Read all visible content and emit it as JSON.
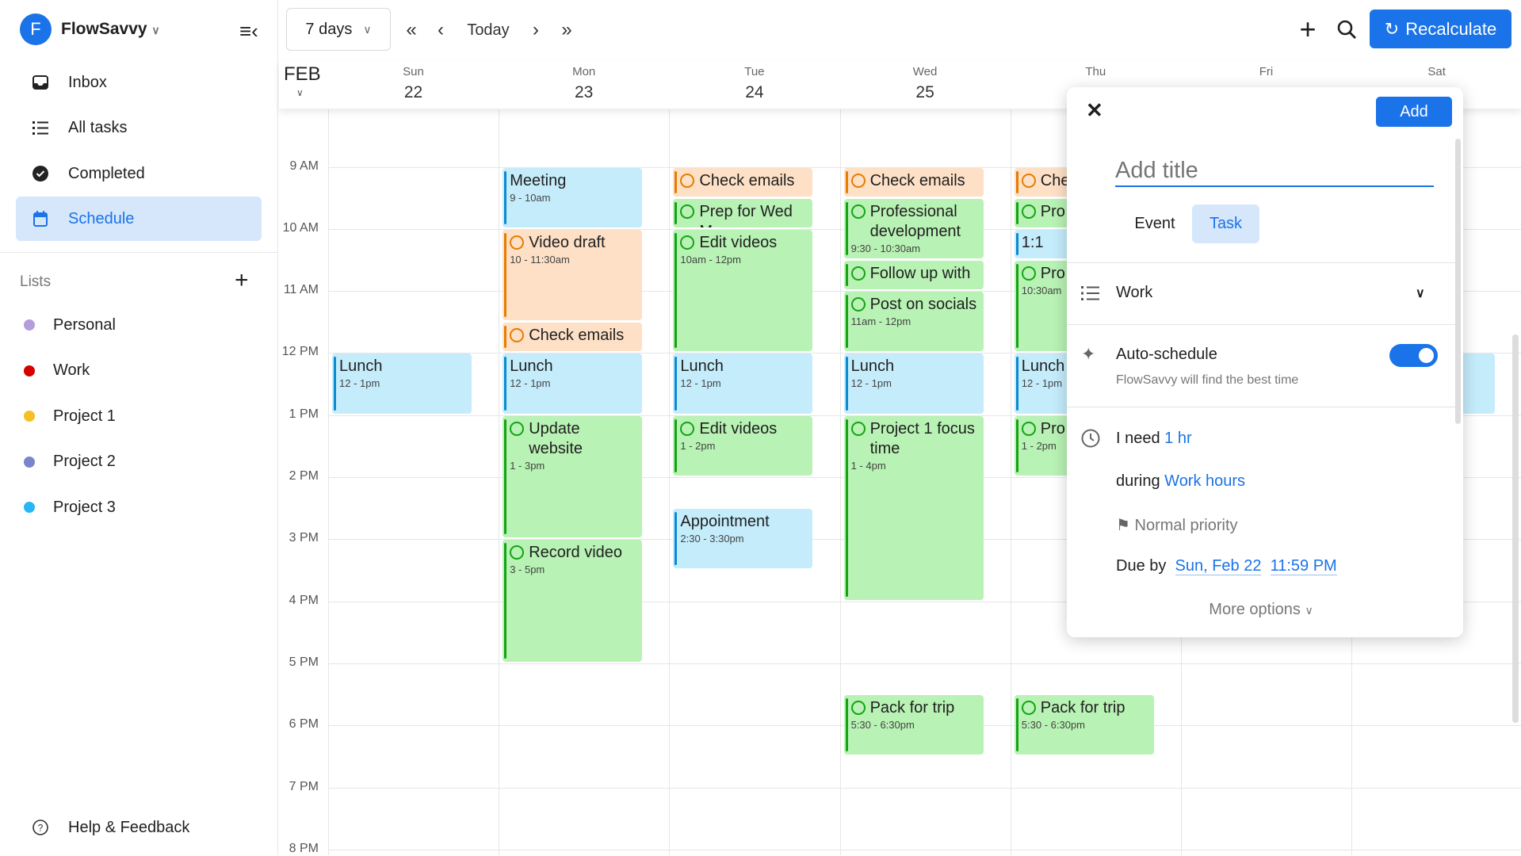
{
  "sidebar": {
    "workspace": "FlowSavvy",
    "avatar_letter": "F",
    "nav": [
      {
        "label": "Inbox",
        "icon": "inbox-icon"
      },
      {
        "label": "All tasks",
        "icon": "list-icon"
      },
      {
        "label": "Completed",
        "icon": "check-circle-icon"
      },
      {
        "label": "Schedule",
        "icon": "calendar-icon",
        "active": true
      }
    ],
    "lists_title": "Lists",
    "lists": [
      {
        "label": "Personal",
        "color": "#b39ddb"
      },
      {
        "label": "Work",
        "color": "#d50000"
      },
      {
        "label": "Project 1",
        "color": "#f6bf26"
      },
      {
        "label": "Project 2",
        "color": "#7986cb"
      },
      {
        "label": "Project 3",
        "color": "#29b6f6"
      }
    ],
    "help": "Help & Feedback"
  },
  "toolbar": {
    "range": "7 days",
    "today": "Today",
    "recalculate": "Recalculate"
  },
  "calendar": {
    "month": "FEB",
    "days": [
      {
        "name": "Sun",
        "num": "22"
      },
      {
        "name": "Mon",
        "num": "23"
      },
      {
        "name": "Tue",
        "num": "24"
      },
      {
        "name": "Wed",
        "num": "25"
      },
      {
        "name": "Thu",
        "num": ""
      },
      {
        "name": "Fri",
        "num": ""
      },
      {
        "name": "Sat",
        "num": ""
      }
    ],
    "hours": [
      "9 AM",
      "10 AM",
      "11 AM",
      "12 PM",
      "1 PM",
      "2 PM",
      "3 PM",
      "4 PM",
      "5 PM",
      "6 PM",
      "7 PM",
      "8 PM"
    ],
    "colors": {
      "event": {
        "bg": "#c4ecfb",
        "bar": "#0b8ad0"
      },
      "work": {
        "bg": "#fde0c6",
        "bar": "#e67c00"
      },
      "green": {
        "bg": "#b8f2b4",
        "bar": "#15a315"
      }
    },
    "events": [
      {
        "day": 0,
        "start": 12,
        "end": 13,
        "title": "Lunch",
        "time": "12 - 1pm",
        "kind": "event"
      },
      {
        "day": 1,
        "start": 9,
        "end": 10,
        "title": "Meeting",
        "time": "9 - 10am",
        "kind": "event"
      },
      {
        "day": 1,
        "start": 10,
        "end": 11.5,
        "title": "Video draft",
        "time": "10 - 11:30am",
        "kind": "work",
        "task": true
      },
      {
        "day": 1,
        "start": 11.5,
        "end": 12,
        "title": "Check emails",
        "time": "",
        "kind": "work",
        "task": true
      },
      {
        "day": 1,
        "start": 12,
        "end": 13,
        "title": "Lunch",
        "time": "12 - 1pm",
        "kind": "event"
      },
      {
        "day": 1,
        "start": 13,
        "end": 15,
        "title": "Update website",
        "time": "1 - 3pm",
        "kind": "green",
        "task": true
      },
      {
        "day": 1,
        "start": 15,
        "end": 17,
        "title": "Record video",
        "time": "3 - 5pm",
        "kind": "green",
        "task": true
      },
      {
        "day": 2,
        "start": 9,
        "end": 9.5,
        "title": "Check emails",
        "time": "",
        "kind": "work",
        "task": true
      },
      {
        "day": 2,
        "start": 9.5,
        "end": 10,
        "title": "Prep for Wed M",
        "time": "",
        "kind": "green",
        "task": true
      },
      {
        "day": 2,
        "start": 10,
        "end": 12,
        "title": "Edit videos",
        "time": "10am - 12pm",
        "kind": "green",
        "task": true
      },
      {
        "day": 2,
        "start": 12,
        "end": 13,
        "title": "Lunch",
        "time": "12 - 1pm",
        "kind": "event"
      },
      {
        "day": 2,
        "start": 13,
        "end": 14,
        "title": "Edit videos",
        "time": "1 - 2pm",
        "kind": "green",
        "task": true
      },
      {
        "day": 2,
        "start": 14.5,
        "end": 15.5,
        "title": "Appointment",
        "time": "2:30 - 3:30pm",
        "kind": "event"
      },
      {
        "day": 3,
        "start": 9,
        "end": 9.5,
        "title": "Check emails",
        "time": "",
        "kind": "work",
        "task": true
      },
      {
        "day": 3,
        "start": 9.5,
        "end": 10.5,
        "title": "Professional development",
        "time": "9:30 - 10:30am",
        "kind": "green",
        "task": true
      },
      {
        "day": 3,
        "start": 10.5,
        "end": 11,
        "title": "Follow up with",
        "time": "",
        "kind": "green",
        "task": true
      },
      {
        "day": 3,
        "start": 11,
        "end": 12,
        "title": "Post on socials",
        "time": "11am - 12pm",
        "kind": "green",
        "task": true
      },
      {
        "day": 3,
        "start": 12,
        "end": 13,
        "title": "Lunch",
        "time": "12 - 1pm",
        "kind": "event"
      },
      {
        "day": 3,
        "start": 13,
        "end": 16,
        "title": "Project 1 focus time",
        "time": "1 - 4pm",
        "kind": "green",
        "task": true
      },
      {
        "day": 3,
        "start": 17.5,
        "end": 18.5,
        "title": "Pack for trip",
        "time": "5:30 - 6:30pm",
        "kind": "green",
        "task": true
      },
      {
        "day": 4,
        "start": 9,
        "end": 9.5,
        "title": "Che",
        "time": "",
        "kind": "work",
        "task": true
      },
      {
        "day": 4,
        "start": 9.5,
        "end": 10,
        "title": "Pro",
        "time": "",
        "kind": "green",
        "task": true
      },
      {
        "day": 4,
        "start": 10,
        "end": 10.5,
        "title": "1:1",
        "time": "",
        "kind": "event"
      },
      {
        "day": 4,
        "start": 10.5,
        "end": 12,
        "title": "Pro",
        "time": "10:30am",
        "kind": "green",
        "task": true
      },
      {
        "day": 4,
        "start": 12,
        "end": 13,
        "title": "Lunch",
        "time": "12 - 1pm",
        "kind": "event"
      },
      {
        "day": 4,
        "start": 13,
        "end": 14,
        "title": "Pro",
        "time": "1 - 2pm",
        "kind": "green",
        "task": true
      },
      {
        "day": 4,
        "start": 17.5,
        "end": 18.5,
        "title": "Pack for trip",
        "time": "5:30 - 6:30pm",
        "kind": "green",
        "task": true
      },
      {
        "day": 6,
        "start": 12,
        "end": 13,
        "title": "",
        "time": "",
        "kind": "event"
      }
    ]
  },
  "popup": {
    "add": "Add",
    "title_placeholder": "Add title",
    "tabs": [
      "Event",
      "Task"
    ],
    "active_tab": "Task",
    "list": "Work",
    "auto_title": "Auto-schedule",
    "auto_sub": "FlowSavvy will find the best time",
    "auto_on": true,
    "need_label": "I need",
    "duration": "1 hr",
    "during_label": "during",
    "hours": "Work hours",
    "priority": "Normal priority",
    "due_label": "Due by",
    "due_date": "Sun, Feb 22",
    "due_time": "11:59 PM",
    "more": "More options"
  }
}
